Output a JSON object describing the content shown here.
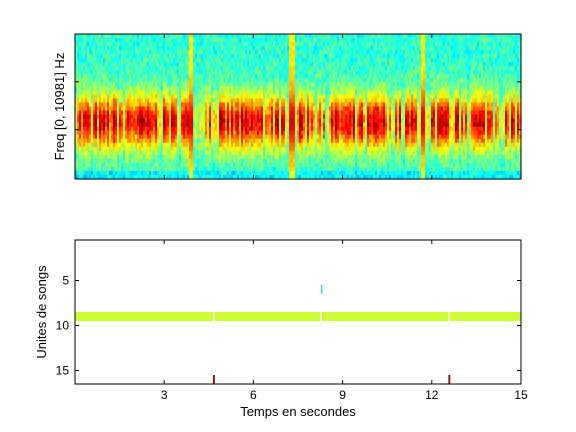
{
  "chart_data": [
    {
      "type": "heatmap",
      "title": "",
      "xlabel": "",
      "ylabel": "Freq [0, 10981] Hz",
      "x_range_seconds": [
        0,
        15
      ],
      "y_range_hz": [
        0,
        10981
      ],
      "colormap": "jet",
      "x_ticks": [],
      "y_ticks": [],
      "grid": false,
      "energy_band_hz": [
        2300,
        6300
      ],
      "broadband_events_seconds": [
        3.9,
        7.3,
        11.7
      ],
      "quiet_segments_seconds": [
        [
          3.95,
          4.35
        ],
        [
          7.25,
          7.45
        ],
        [
          11.75,
          11.95
        ]
      ]
    },
    {
      "type": "scatter",
      "title": "",
      "xlabel": "Temps en secondes",
      "ylabel": "Unites de songs",
      "xlim": [
        0,
        15
      ],
      "ylim": [
        16.5,
        0.5
      ],
      "y_reversed": true,
      "x_ticks": [
        3,
        6,
        9,
        12,
        15
      ],
      "y_ticks": [
        5,
        10,
        15
      ],
      "grid": false,
      "series": [
        {
          "unit": 9,
          "color": "#ccff33",
          "segments": [
            [
              0,
              4.65
            ],
            [
              4.7,
              8.25
            ],
            [
              8.3,
              12.55
            ],
            [
              12.6,
              15
            ]
          ]
        },
        {
          "unit": 6,
          "color": "#33ddee",
          "segments": [
            [
              8.27,
              8.31
            ]
          ]
        },
        {
          "unit": 16,
          "color": "#800000",
          "segments": [
            [
              4.64,
              4.7
            ],
            [
              12.56,
              12.62
            ]
          ]
        }
      ]
    }
  ]
}
